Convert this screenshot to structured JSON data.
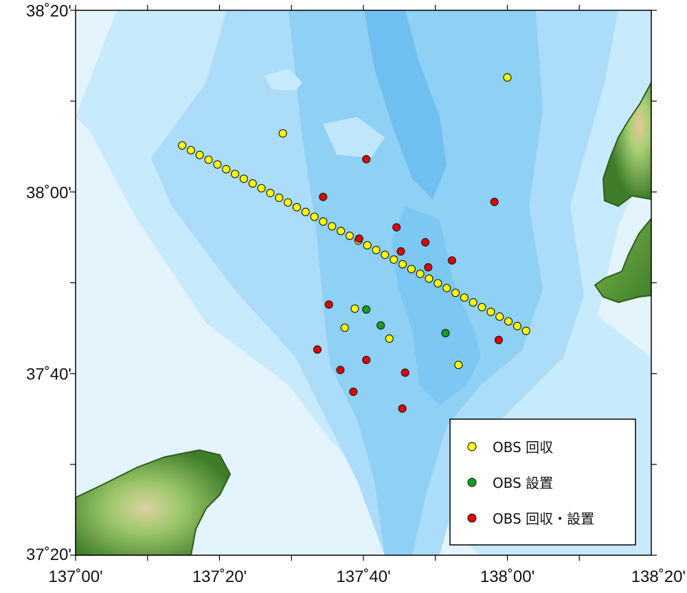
{
  "map": {
    "lon_range": [
      137.0,
      138.3333
    ],
    "lat_range": [
      37.3333,
      38.3333
    ],
    "lon_ticks": [
      {
        "value": 137.0,
        "label": "137˚00'"
      },
      {
        "value": 137.3333,
        "label": "137˚20'"
      },
      {
        "value": 137.6667,
        "label": "137˚40'"
      },
      {
        "value": 138.0,
        "label": "138˚00'"
      },
      {
        "value": 138.3333,
        "label": "138˚20'"
      }
    ],
    "lat_ticks": [
      {
        "value": 38.3333,
        "label": "38˚20'"
      },
      {
        "value": 38.0,
        "label": "38˚00'"
      },
      {
        "value": 37.6667,
        "label": "37˚40'"
      },
      {
        "value": 37.3333,
        "label": "37˚20'"
      }
    ],
    "colors": {
      "ocean_shallow": "#e3f4fd",
      "ocean_mid": "#bfe6fb",
      "ocean_deep": "#9fd6f7",
      "trough": "#7fc6f2",
      "trough_core": "#66b9ef",
      "land_low": "#3f7d2a",
      "land_mid": "#8dbf5f",
      "land_high": "#e6c79a"
    }
  },
  "legend": {
    "items": [
      {
        "label": "OBS 回収",
        "color": "#ffff00"
      },
      {
        "label": "OBS 設置",
        "color": "#11a01c"
      },
      {
        "label": "OBS 回収・設置",
        "color": "#e00000"
      }
    ]
  },
  "stations": {
    "recovered_line_start": [
      137.2467,
      38.0853
    ],
    "recovered_line_end": [
      138.0433,
      37.745
    ],
    "recovered_line_count": 40,
    "recovered_extra": [
      [
        137.48,
        38.1075
      ],
      [
        138.0,
        38.21
      ],
      [
        137.6467,
        37.7858
      ],
      [
        137.6233,
        37.7508
      ],
      [
        137.7267,
        37.7308
      ],
      [
        137.8867,
        37.6825
      ]
    ],
    "deployed": [
      [
        137.6733,
        37.7842
      ],
      [
        137.7067,
        37.755
      ],
      [
        137.8567,
        37.7408
      ]
    ],
    "recovered_and_deployed": [
      [
        137.6733,
        38.06
      ],
      [
        137.5733,
        37.9908
      ],
      [
        137.97,
        37.9817
      ],
      [
        137.7433,
        37.935
      ],
      [
        137.6567,
        37.9142
      ],
      [
        137.81,
        37.9075
      ],
      [
        137.7533,
        37.8908
      ],
      [
        137.8167,
        37.8617
      ],
      [
        137.8717,
        37.8742
      ],
      [
        137.5867,
        37.7933
      ],
      [
        137.56,
        37.7108
      ],
      [
        137.6733,
        37.6917
      ],
      [
        137.6133,
        37.6733
      ],
      [
        137.7633,
        37.6683
      ],
      [
        137.6433,
        37.6333
      ],
      [
        137.7567,
        37.6025
      ],
      [
        137.98,
        37.7283
      ]
    ]
  }
}
